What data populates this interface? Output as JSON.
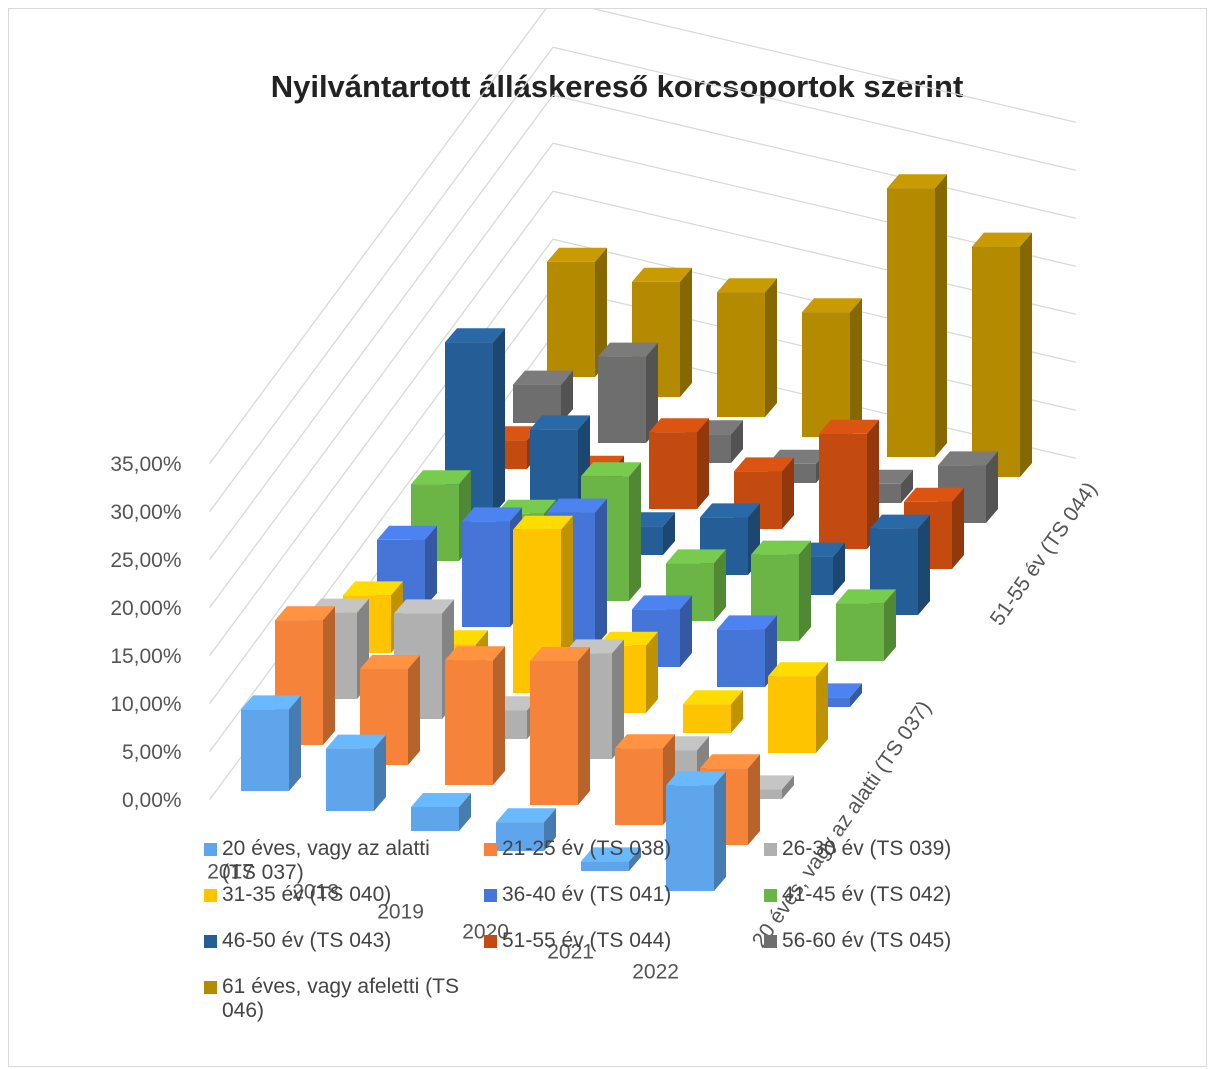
{
  "chart_data": {
    "type": "bar3d",
    "title": "Nyilvántartott álláskereső korcsoportok szerint",
    "categories": [
      "2017",
      "2018",
      "2019",
      "2020",
      "2021",
      "2022"
    ],
    "depth_axis_labels": [
      "20 éves, vagy az alatti (TS 037)",
      null,
      null,
      null,
      null,
      null,
      null,
      "51-55 év (TS 044)",
      null,
      null
    ],
    "ylim": [
      0,
      35
    ],
    "yticks": [
      {
        "value": 0,
        "label": "0,00%"
      },
      {
        "value": 5,
        "label": "5,00%"
      },
      {
        "value": 10,
        "label": "10,00%"
      },
      {
        "value": 15,
        "label": "15,00%"
      },
      {
        "value": 20,
        "label": "20,00%"
      },
      {
        "value": 25,
        "label": "25,00%"
      },
      {
        "value": 30,
        "label": "30,00%"
      },
      {
        "value": 35,
        "label": "35,00%"
      }
    ],
    "grid": true,
    "legend": "bottom",
    "series": [
      {
        "name": "20 éves, vagy az alatti (TS 037)",
        "color": "#5ea5ec",
        "values": [
          8.5,
          6.5,
          2.5,
          3,
          1,
          11
        ]
      },
      {
        "name": "21-25 év (TS 038)",
        "color": "#f5833a",
        "values": [
          13,
          10,
          13,
          15,
          8,
          8
        ]
      },
      {
        "name": "26-30 év (TS 039)",
        "color": "#b0b0b0",
        "values": [
          9,
          11,
          3,
          11,
          3,
          1
        ]
      },
      {
        "name": "31-35 év (TS 040)",
        "color": "#ffc400",
        "values": [
          6,
          3,
          17,
          7,
          3,
          8
        ]
      },
      {
        "name": "36-40 év (TS 041)",
        "color": "#4575d6",
        "values": [
          7,
          11,
          14,
          6,
          6,
          1
        ]
      },
      {
        "name": "41-45 év (TS 042)",
        "color": "#6ab545",
        "values": [
          8,
          7,
          13,
          6,
          9,
          6
        ]
      },
      {
        "name": "46-50 év (TS 043)",
        "color": "#255e96",
        "values": [
          18,
          11,
          3,
          6,
          4,
          9
        ]
      },
      {
        "name": "51-55 év (TS 044)",
        "color": "#c44b10",
        "values": [
          3,
          2,
          8,
          6,
          12,
          7
        ]
      },
      {
        "name": "56-60 év (TS 045)",
        "color": "#6e6e6e",
        "values": [
          4,
          9,
          3,
          2,
          2,
          6
        ]
      },
      {
        "name": "61 éves, vagy afeletti (TS 046)",
        "color": "#b38a00",
        "values": [
          12,
          12,
          13,
          13,
          28,
          24
        ]
      }
    ]
  }
}
